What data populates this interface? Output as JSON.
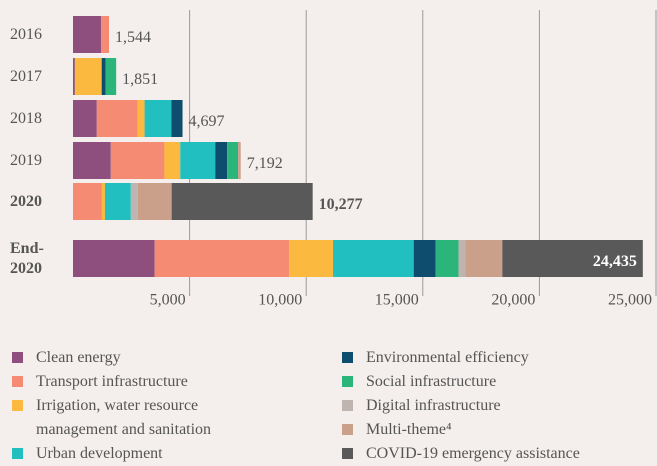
{
  "chart_data": {
    "type": "stacked_bar_horizontal",
    "categories": [
      "2016",
      "2017",
      "2018",
      "2019",
      "2020",
      "End-2020"
    ],
    "series": [
      {
        "name": "Clean energy",
        "color": "#8e4f7f",
        "values": [
          1200,
          80,
          1020,
          1620,
          0,
          3500
        ]
      },
      {
        "name": "Transport infrastructure",
        "color": "#f58b73",
        "values": [
          344,
          0,
          1750,
          2300,
          1240,
          5770
        ]
      },
      {
        "name": "Irrigation, water resource management and sanitation",
        "color": "#fbb93f",
        "values": [
          0,
          1150,
          300,
          680,
          130,
          1880
        ]
      },
      {
        "name": "Urban development",
        "color": "#22bfc1",
        "values": [
          0,
          0,
          1150,
          1500,
          1110,
          3460
        ]
      },
      {
        "name": "Environmental efficiency",
        "color": "#0f4d6e",
        "values": [
          0,
          170,
          477,
          510,
          0,
          940
        ]
      },
      {
        "name": "Social infrastructure",
        "color": "#2cb57a",
        "values": [
          0,
          451,
          0,
          470,
          0,
          980
        ]
      },
      {
        "name": "Digital infrastructure",
        "color": "#bfb5b0",
        "values": [
          0,
          0,
          0,
          0,
          300,
          300
        ]
      },
      {
        "name": "Multi-theme⁴",
        "color": "#caa08a",
        "values": [
          0,
          0,
          0,
          112,
          1450,
          1580
        ]
      },
      {
        "name": "COVID-19 emergency assistance",
        "color": "#595959",
        "values": [
          0,
          0,
          0,
          0,
          6047,
          6025
        ]
      }
    ],
    "totals": [
      {
        "value": 1544,
        "label": "1,544"
      },
      {
        "value": 1851,
        "label": "1,851"
      },
      {
        "value": 4697,
        "label": "4,697"
      },
      {
        "value": 7192,
        "label": "7,192"
      },
      {
        "value": 10277,
        "label": "10,277"
      },
      {
        "value": 24435,
        "label": "24,435"
      }
    ],
    "xlim": [
      0,
      25000
    ],
    "xticks": [
      {
        "value": 5000,
        "label": "5,000"
      },
      {
        "value": 10000,
        "label": "10,000"
      },
      {
        "value": 15000,
        "label": "15,000"
      },
      {
        "value": 20000,
        "label": "20,000"
      },
      {
        "value": 25000,
        "label": "25,000"
      }
    ],
    "grid": true
  }
}
